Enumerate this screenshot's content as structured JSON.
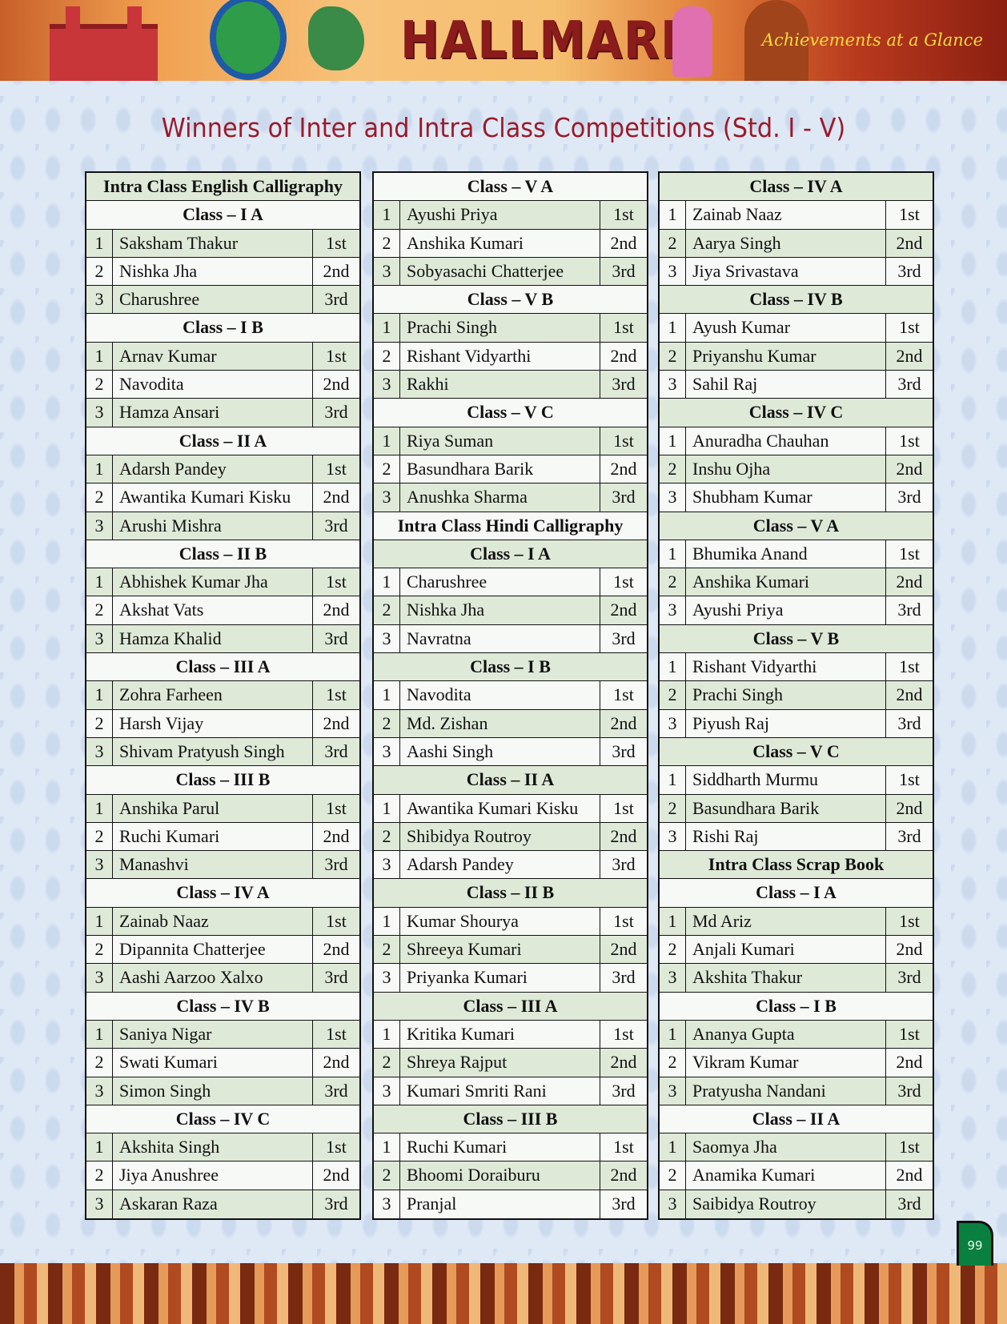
{
  "banner": {
    "logo": "HALLMARK",
    "tagline": "Achievements at a Glance"
  },
  "title": "Winners of Inter and Intra Class Competitions (Std. I - V)",
  "page_number": "99",
  "colors": {
    "title": "#9b1b2a",
    "row_green": "#dfe9d8",
    "row_white": "#f7f9f6",
    "page_box": "#0a8040"
  },
  "columns": [
    {
      "sections": [
        {
          "title": "Intra Class English Calligraphy"
        },
        {
          "class": "Class – I A",
          "rows": [
            [
              "1",
              "Saksham Thakur",
              "1st"
            ],
            [
              "2",
              "Nishka Jha",
              "2nd"
            ],
            [
              "3",
              "Charushree",
              "3rd"
            ]
          ]
        },
        {
          "class": "Class – I B",
          "rows": [
            [
              "1",
              "Arnav Kumar",
              "1st"
            ],
            [
              "2",
              "Navodita",
              "2nd"
            ],
            [
              "3",
              "Hamza Ansari",
              "3rd"
            ]
          ]
        },
        {
          "class": "Class – II A",
          "rows": [
            [
              "1",
              "Adarsh Pandey",
              "1st"
            ],
            [
              "2",
              "Awantika Kumari Kisku",
              "2nd"
            ],
            [
              "3",
              "Arushi Mishra",
              "3rd"
            ]
          ]
        },
        {
          "class": "Class – II B",
          "rows": [
            [
              "1",
              "Abhishek Kumar Jha",
              "1st"
            ],
            [
              "2",
              "Akshat Vats",
              "2nd"
            ],
            [
              "3",
              "Hamza Khalid",
              "3rd"
            ]
          ]
        },
        {
          "class": "Class – III A",
          "rows": [
            [
              "1",
              "Zohra Farheen",
              "1st"
            ],
            [
              "2",
              "Harsh Vijay",
              "2nd"
            ],
            [
              "3",
              "Shivam Pratyush Singh",
              "3rd"
            ]
          ]
        },
        {
          "class": "Class – III B",
          "rows": [
            [
              "1",
              "Anshika Parul",
              "1st"
            ],
            [
              "2",
              "Ruchi Kumari",
              "2nd"
            ],
            [
              "3",
              "Manashvi",
              "3rd"
            ]
          ]
        },
        {
          "class": "Class – IV A",
          "rows": [
            [
              "1",
              "Zainab Naaz",
              "1st"
            ],
            [
              "2",
              "Dipannita Chatterjee",
              "2nd"
            ],
            [
              "3",
              "Aashi Aarzoo Xalxo",
              "3rd"
            ]
          ]
        },
        {
          "class": "Class – IV B",
          "rows": [
            [
              "1",
              "Saniya Nigar",
              "1st"
            ],
            [
              "2",
              "Swati Kumari",
              "2nd"
            ],
            [
              "3",
              "Simon Singh",
              "3rd"
            ]
          ]
        },
        {
          "class": "Class – IV C",
          "rows": [
            [
              "1",
              "Akshita Singh",
              "1st"
            ],
            [
              "2",
              "Jiya Anushree",
              "2nd"
            ],
            [
              "3",
              "Askaran Raza",
              "3rd"
            ]
          ]
        }
      ]
    },
    {
      "sections": [
        {
          "class": "Class – V A",
          "rows": [
            [
              "1",
              "Ayushi Priya",
              "1st"
            ],
            [
              "2",
              "Anshika Kumari",
              "2nd"
            ],
            [
              "3",
              "Sobyasachi Chatterjee",
              "3rd"
            ]
          ]
        },
        {
          "class": "Class – V B",
          "rows": [
            [
              "1",
              "Prachi Singh",
              "1st"
            ],
            [
              "2",
              "Rishant Vidyarthi",
              "2nd"
            ],
            [
              "3",
              "Rakhi",
              "3rd"
            ]
          ]
        },
        {
          "class": "Class – V C",
          "rows": [
            [
              "1",
              "Riya Suman",
              "1st"
            ],
            [
              "2",
              "Basundhara Barik",
              "2nd"
            ],
            [
              "3",
              "Anushka Sharma",
              "3rd"
            ]
          ]
        },
        {
          "title": "Intra Class Hindi Calligraphy"
        },
        {
          "class": "Class – I A",
          "rows": [
            [
              "1",
              "Charushree",
              "1st"
            ],
            [
              "2",
              "Nishka Jha",
              "2nd"
            ],
            [
              "3",
              "Navratna",
              "3rd"
            ]
          ]
        },
        {
          "class": "Class – I B",
          "rows": [
            [
              "1",
              "Navodita",
              "1st"
            ],
            [
              "2",
              "Md. Zishan",
              "2nd"
            ],
            [
              "3",
              "Aashi Singh",
              "3rd"
            ]
          ]
        },
        {
          "class": "Class – II A",
          "rows": [
            [
              "1",
              "Awantika Kumari Kisku",
              "1st"
            ],
            [
              "2",
              "Shibidya Routroy",
              "2nd"
            ],
            [
              "3",
              "Adarsh Pandey",
              "3rd"
            ]
          ]
        },
        {
          "class": "Class – II B",
          "rows": [
            [
              "1",
              "Kumar Shourya",
              "1st"
            ],
            [
              "2",
              "Shreeya Kumari",
              "2nd"
            ],
            [
              "3",
              "Priyanka Kumari",
              "3rd"
            ]
          ]
        },
        {
          "class": "Class – III A",
          "rows": [
            [
              "1",
              "Kritika Kumari",
              "1st"
            ],
            [
              "2",
              "Shreya Rajput",
              "2nd"
            ],
            [
              "3",
              "Kumari Smriti Rani",
              "3rd"
            ]
          ]
        },
        {
          "class": "Class – III B",
          "rows": [
            [
              "1",
              "Ruchi Kumari",
              "1st"
            ],
            [
              "2",
              "Bhoomi Doraiburu",
              "2nd"
            ],
            [
              "3",
              "Pranjal",
              "3rd"
            ]
          ]
        }
      ]
    },
    {
      "sections": [
        {
          "class": "Class – IV A",
          "rows": [
            [
              "1",
              "Zainab Naaz",
              "1st"
            ],
            [
              "2",
              "Aarya Singh",
              "2nd"
            ],
            [
              "3",
              "Jiya Srivastava",
              "3rd"
            ]
          ]
        },
        {
          "class": "Class – IV B",
          "rows": [
            [
              "1",
              "Ayush Kumar",
              "1st"
            ],
            [
              "2",
              "Priyanshu Kumar",
              "2nd"
            ],
            [
              "3",
              "Sahil Raj",
              "3rd"
            ]
          ]
        },
        {
          "class": "Class – IV C",
          "rows": [
            [
              "1",
              "Anuradha Chauhan",
              "1st"
            ],
            [
              "2",
              "Inshu Ojha",
              "2nd"
            ],
            [
              "3",
              "Shubham Kumar",
              "3rd"
            ]
          ]
        },
        {
          "class": "Class – V A",
          "rows": [
            [
              "1",
              "Bhumika Anand",
              "1st"
            ],
            [
              "2",
              "Anshika Kumari",
              "2nd"
            ],
            [
              "3",
              "Ayushi Priya",
              "3rd"
            ]
          ]
        },
        {
          "class": "Class – V B",
          "rows": [
            [
              "1",
              "Rishant Vidyarthi",
              "1st"
            ],
            [
              "2",
              "Prachi Singh",
              "2nd"
            ],
            [
              "3",
              "Piyush Raj",
              "3rd"
            ]
          ]
        },
        {
          "class": "Class – V C",
          "rows": [
            [
              "1",
              "Siddharth Murmu",
              "1st"
            ],
            [
              "2",
              "Basundhara Barik",
              "2nd"
            ],
            [
              "3",
              "Rishi Raj",
              "3rd"
            ]
          ]
        },
        {
          "title": "Intra Class Scrap Book"
        },
        {
          "class": "Class – I A",
          "rows": [
            [
              "1",
              "Md Ariz",
              "1st"
            ],
            [
              "2",
              "Anjali Kumari",
              "2nd"
            ],
            [
              "3",
              "Akshita Thakur",
              "3rd"
            ]
          ]
        },
        {
          "class": "Class – I B",
          "rows": [
            [
              "1",
              "Ananya Gupta",
              "1st"
            ],
            [
              "2",
              "Vikram Kumar",
              "2nd"
            ],
            [
              "3",
              "Pratyusha Nandani",
              "3rd"
            ]
          ]
        },
        {
          "class": "Class – II A",
          "rows": [
            [
              "1",
              "Saomya Jha",
              "1st"
            ],
            [
              "2",
              "Anamika Kumari",
              "2nd"
            ],
            [
              "3",
              "Saibidya Routroy",
              "3rd"
            ]
          ]
        }
      ]
    }
  ]
}
